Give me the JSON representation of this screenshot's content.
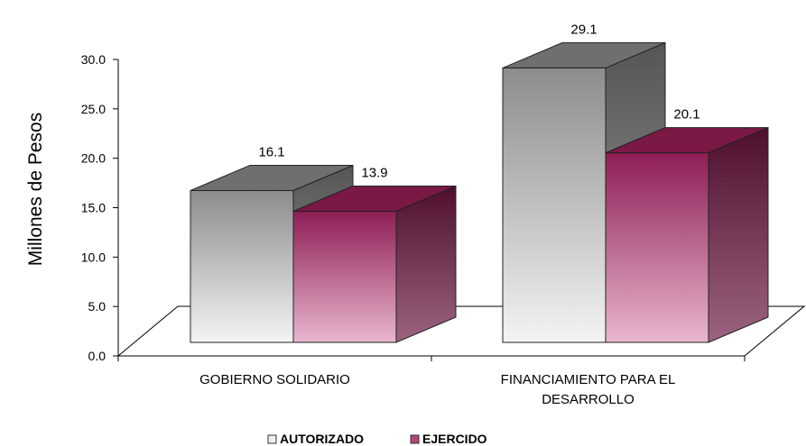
{
  "chart_data": {
    "type": "bar",
    "title": "",
    "ylabel": "Millones de Pesos",
    "xlabel": "",
    "categories": [
      "GOBIERNO SOLIDARIO",
      "FINANCIAMIENTO PARA EL DESARROLLO"
    ],
    "category_lines": [
      [
        "GOBIERNO SOLIDARIO"
      ],
      [
        "FINANCIAMIENTO PARA EL",
        "DESARROLLO"
      ]
    ],
    "series": [
      {
        "name": "AUTORIZADO",
        "values": [
          16.1,
          29.1
        ],
        "labels": [
          "16.1",
          "29.1"
        ],
        "color": "#a0a0a0"
      },
      {
        "name": "EJERCIDO",
        "values": [
          13.9,
          20.1
        ],
        "labels": [
          "13.9",
          "20.1"
        ],
        "color": "#9c2a5e"
      }
    ],
    "ylim": [
      0,
      30
    ],
    "yticks": [
      "0.0",
      "5.0",
      "10.0",
      "15.0",
      "20.0",
      "25.0",
      "30.0"
    ],
    "grid": false,
    "style": "3d",
    "legend_position": "bottom"
  }
}
